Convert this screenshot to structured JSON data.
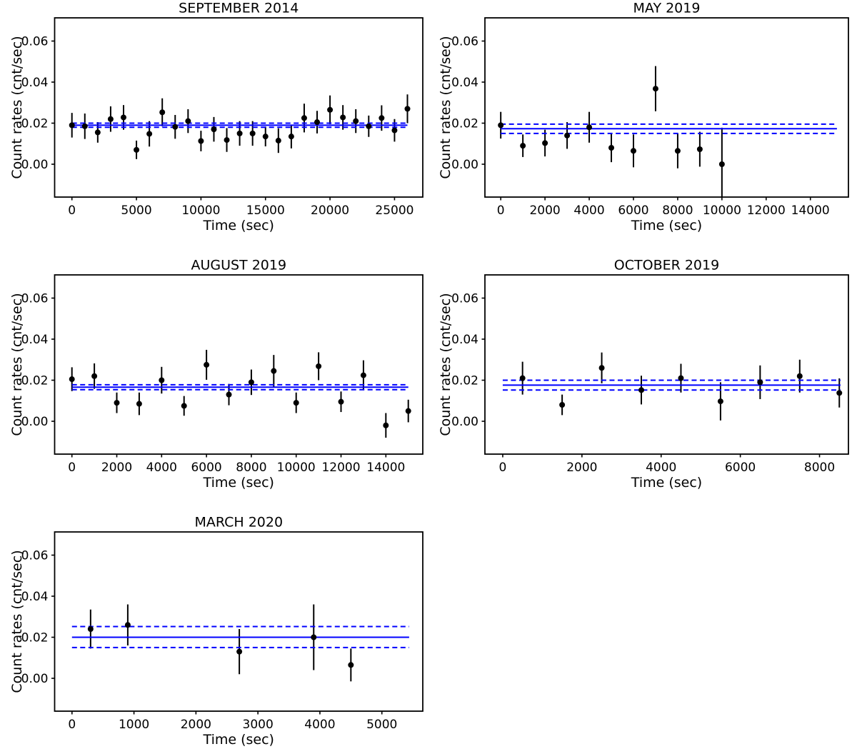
{
  "figure": {
    "background": "#ffffff",
    "accent_color": "#0000ff",
    "marker_color": "#000000",
    "shared_ylabel": "Count rates (cnt/sec)",
    "shared_xlabel": "Time (sec)"
  },
  "chart_data": [
    {
      "type": "scatter",
      "title": "SEPTEMBER 2014",
      "xlabel": "Time (sec)",
      "ylabel": "Count rates (cnt/sec)",
      "grid_position": {
        "row": 0,
        "col": 0
      },
      "xlim": [
        -1340,
        27190
      ],
      "ylim": [
        -0.016,
        0.0713
      ],
      "xticks": [
        0,
        5000,
        10000,
        15000,
        20000,
        25000
      ],
      "yticks": [
        0.0,
        0.02,
        0.04,
        0.06
      ],
      "x": [
        0,
        1000,
        2000,
        3000,
        4000,
        5000,
        6000,
        7000,
        8000,
        9000,
        10000,
        11000,
        12000,
        13000,
        14000,
        15000,
        16000,
        17000,
        18000,
        19000,
        20000,
        21000,
        22000,
        23000,
        24000,
        25000,
        26000
      ],
      "y": [
        0.019,
        0.0185,
        0.0155,
        0.022,
        0.0228,
        0.007,
        0.0148,
        0.0253,
        0.0182,
        0.021,
        0.0113,
        0.017,
        0.0118,
        0.015,
        0.015,
        0.0135,
        0.0115,
        0.0135,
        0.0225,
        0.0205,
        0.0265,
        0.0228,
        0.021,
        0.0185,
        0.0225,
        0.0165,
        0.027
      ],
      "yerr": [
        0.006,
        0.0062,
        0.005,
        0.0062,
        0.006,
        0.0045,
        0.0062,
        0.0068,
        0.0058,
        0.0058,
        0.005,
        0.006,
        0.0058,
        0.006,
        0.006,
        0.0048,
        0.006,
        0.0058,
        0.007,
        0.0055,
        0.007,
        0.006,
        0.0058,
        0.0052,
        0.0062,
        0.0055,
        0.007
      ],
      "mean_line": {
        "mean": 0.019,
        "upper": 0.02,
        "lower": 0.018,
        "span": [
          0,
          26000
        ]
      }
    },
    {
      "type": "scatter",
      "title": "MAY 2019",
      "xlabel": "Time (sec)",
      "ylabel": "Count rates (cnt/sec)",
      "grid_position": {
        "row": 0,
        "col": 1
      },
      "xlim": [
        -716,
        15720
      ],
      "ylim": [
        -0.016,
        0.0713
      ],
      "xticks": [
        0,
        2000,
        4000,
        6000,
        8000,
        10000,
        12000,
        14000
      ],
      "yticks": [
        0.0,
        0.02,
        0.04,
        0.06
      ],
      "x": [
        0,
        1000,
        2000,
        3000,
        4000,
        5000,
        6000,
        7000,
        8000,
        9000,
        10000
      ],
      "y": [
        0.019,
        0.009,
        0.0103,
        0.014,
        0.018,
        0.008,
        0.0065,
        0.0368,
        0.0065,
        0.0073,
        0.0
      ],
      "yerr": [
        0.0065,
        0.0055,
        0.0065,
        0.0065,
        0.0075,
        0.007,
        0.008,
        0.011,
        0.0085,
        0.0085,
        0.0178
      ],
      "mean_line": {
        "mean": 0.0173,
        "upper": 0.0195,
        "lower": 0.015,
        "span": [
          0,
          15200
        ]
      }
    },
    {
      "type": "scatter",
      "title": "AUGUST 2019",
      "xlabel": "Time (sec)",
      "ylabel": "Count rates (cnt/sec)",
      "grid_position": {
        "row": 1,
        "col": 0
      },
      "xlim": [
        -771,
        15646
      ],
      "ylim": [
        -0.016,
        0.0713
      ],
      "xticks": [
        0,
        2000,
        4000,
        6000,
        8000,
        10000,
        12000,
        14000
      ],
      "yticks": [
        0.0,
        0.02,
        0.04,
        0.06
      ],
      "x": [
        0,
        1000,
        2000,
        3000,
        4000,
        5000,
        6000,
        7000,
        8000,
        9000,
        10000,
        11000,
        12000,
        13000,
        14000,
        15000
      ],
      "y": [
        0.0205,
        0.022,
        0.009,
        0.0085,
        0.02,
        0.0075,
        0.0275,
        0.013,
        0.019,
        0.0245,
        0.009,
        0.0268,
        0.0095,
        0.0224,
        -0.002,
        0.005
      ],
      "yerr": [
        0.0058,
        0.0062,
        0.005,
        0.0055,
        0.0065,
        0.0048,
        0.0073,
        0.0052,
        0.0062,
        0.0078,
        0.005,
        0.0068,
        0.005,
        0.0073,
        0.006,
        0.0055
      ],
      "mean_line": {
        "mean": 0.0166,
        "upper": 0.0178,
        "lower": 0.0154,
        "span": [
          0,
          15000
        ]
      }
    },
    {
      "type": "scatter",
      "title": "OCTOBER 2019",
      "xlabel": "Time (sec)",
      "ylabel": "Count rates (cnt/sec)",
      "grid_position": {
        "row": 1,
        "col": 1
      },
      "xlim": [
        -450,
        8730
      ],
      "ylim": [
        -0.016,
        0.0713
      ],
      "xticks": [
        0,
        2000,
        4000,
        6000,
        8000
      ],
      "yticks": [
        0.0,
        0.02,
        0.04,
        0.06
      ],
      "x": [
        500,
        1500,
        2500,
        3500,
        4500,
        5500,
        6500,
        7500,
        8500
      ],
      "y": [
        0.021,
        0.008,
        0.026,
        0.0152,
        0.021,
        0.0097,
        0.019,
        0.022,
        0.0138
      ],
      "yerr": [
        0.008,
        0.005,
        0.0075,
        0.007,
        0.007,
        0.0093,
        0.0082,
        0.008,
        0.0071
      ],
      "mean_line": {
        "mean": 0.0176,
        "upper": 0.02,
        "lower": 0.0152,
        "span": [
          0,
          8530
        ]
      }
    },
    {
      "type": "scatter",
      "title": "MARCH 2020",
      "xlabel": "Time (sec)",
      "ylabel": "Count rates (cnt/sec)",
      "grid_position": {
        "row": 2,
        "col": 0
      },
      "xlim": [
        -280,
        5660
      ],
      "ylim": [
        -0.016,
        0.0713
      ],
      "xticks": [
        0,
        1000,
        2000,
        3000,
        4000,
        5000
      ],
      "yticks": [
        0.0,
        0.02,
        0.04,
        0.06
      ],
      "x": [
        300,
        900,
        2700,
        3900,
        4500
      ],
      "y": [
        0.024,
        0.026,
        0.013,
        0.02,
        0.0065
      ],
      "yerr": [
        0.0095,
        0.01,
        0.011,
        0.016,
        0.008
      ],
      "mean_line": {
        "mean": 0.02,
        "upper": 0.0252,
        "lower": 0.015,
        "span": [
          0,
          5440
        ]
      }
    }
  ]
}
